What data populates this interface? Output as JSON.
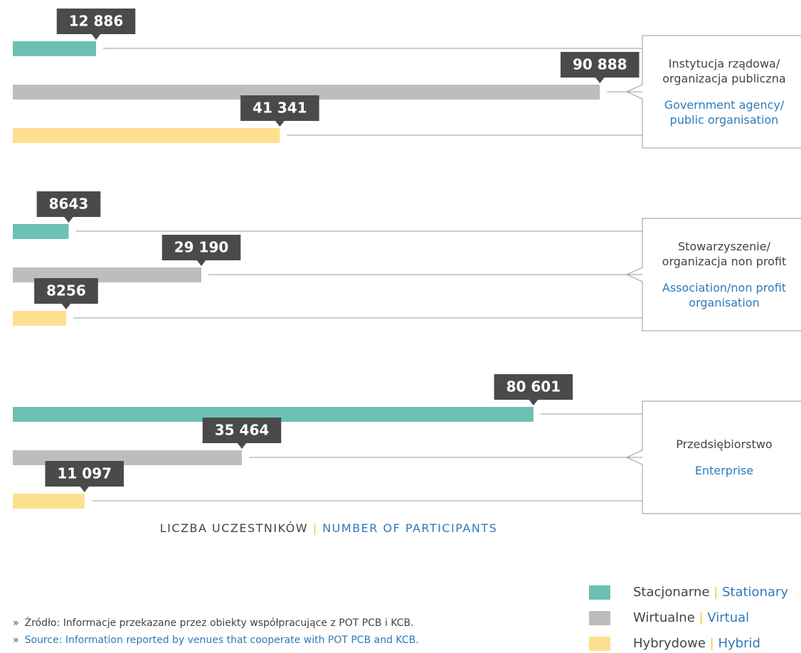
{
  "chart_data": {
    "type": "bar",
    "orientation": "horizontal",
    "categories": [
      "Instytucja rządowa/ organizacja publiczna",
      "Stowarzyszenie/ organizacja non profit",
      "Przedsiębiorstwo"
    ],
    "categories_en": [
      "Government agency/ public organisation",
      "Association/non profit organisation",
      "Enterprise"
    ],
    "series": [
      {
        "name": "Stacjonarne",
        "name_en": "Stationary",
        "color": "#6cc0b5",
        "values": [
          12886,
          8643,
          80601
        ],
        "value_labels": [
          "12 886",
          "8643",
          "80 601"
        ]
      },
      {
        "name": "Wirtualne",
        "name_en": "Virtual",
        "color": "#bdbdbd",
        "values": [
          90888,
          29190,
          35464
        ],
        "value_labels": [
          "90 888",
          "29 190",
          "35 464"
        ]
      },
      {
        "name": "Hybrydowe",
        "name_en": "Hybrid",
        "color": "#fde08f",
        "values": [
          41341,
          8256,
          11097
        ],
        "value_labels": [
          "41 341",
          "8256",
          "11 097"
        ]
      }
    ],
    "xlim": [
      0,
      100000
    ],
    "x_label": "LICZBA UCZESTNIKÓW",
    "x_label_en": "NUMBER OF PARTICIPANTS",
    "separator": "|",
    "legend": "bottom-right"
  },
  "source": {
    "bullet": "»",
    "lines": [
      "Źródło: Informacje przekazane przez obiekty współpracujące z POT PCB i KCB.",
      "Source: Information reported by venues that cooperate with POT PCB and KCB."
    ]
  }
}
